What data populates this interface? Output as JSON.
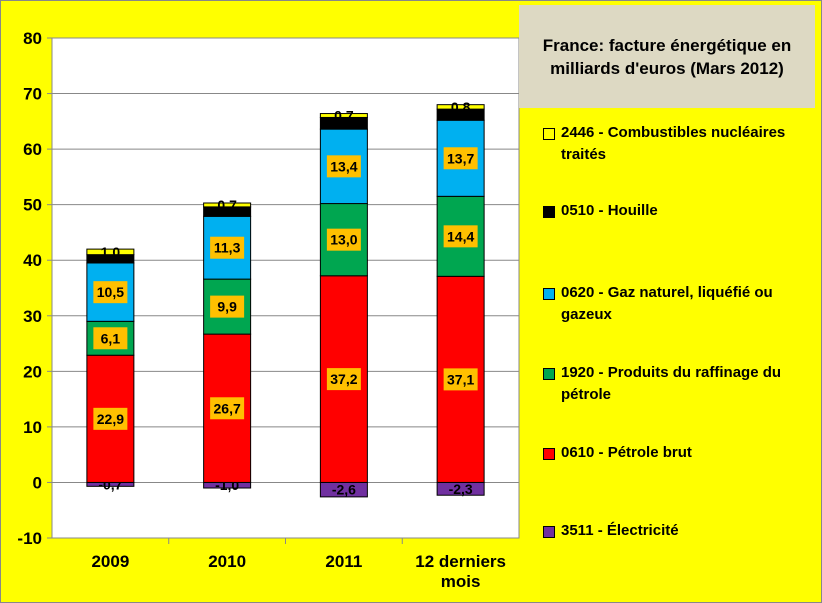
{
  "chart_data": {
    "type": "bar",
    "stacked": true,
    "title": "France: facture énergétique en milliards d'euros (Mars 2012)",
    "categories": [
      "2009",
      "2010",
      "2011",
      "12 derniers mois"
    ],
    "ylim": [
      -10,
      80
    ],
    "yticks": [
      "-10",
      "0",
      "10",
      "20",
      "30",
      "40",
      "50",
      "60",
      "70",
      "80"
    ],
    "grid": true,
    "legend_placement": "right",
    "series": [
      {
        "name": "3511 - Électricité",
        "color": "#7030a0",
        "values": [
          -0.7,
          -1.0,
          -2.6,
          -2.3
        ],
        "labels": [
          "-0,7",
          "-1,0",
          "-2,6",
          "-2,3"
        ]
      },
      {
        "name": "0610 - Pétrole brut",
        "color": "#ff0000",
        "values": [
          22.9,
          26.7,
          37.2,
          37.1
        ],
        "labels": [
          "22,9",
          "26,7",
          "37,2",
          "37,1"
        ]
      },
      {
        "name": "1920 - Produits du raffinage du pétrole",
        "color": "#00a650",
        "values": [
          6.1,
          9.9,
          13.0,
          14.4
        ],
        "labels": [
          "6,1",
          "9,9",
          "13,0",
          "14,4"
        ]
      },
      {
        "name": "0620 - Gaz naturel, liquéfié ou gazeux",
        "color": "#00b0f0",
        "values": [
          10.5,
          11.3,
          13.4,
          13.7
        ],
        "labels": [
          "10,5",
          "11,3",
          "13,4",
          "13,7"
        ]
      },
      {
        "name": "0510 - Houille",
        "color": "#000000",
        "values": [
          1.5,
          1.7,
          2.1,
          2.0
        ],
        "labels": [
          "",
          "",
          "",
          ""
        ]
      },
      {
        "name": "2446 - Combustibles nucléaires traités",
        "color": "#ffff00",
        "values": [
          1.0,
          0.7,
          0.7,
          0.8
        ],
        "labels": [
          "1,0",
          "0,7",
          "0,7",
          "0,8"
        ]
      }
    ]
  }
}
